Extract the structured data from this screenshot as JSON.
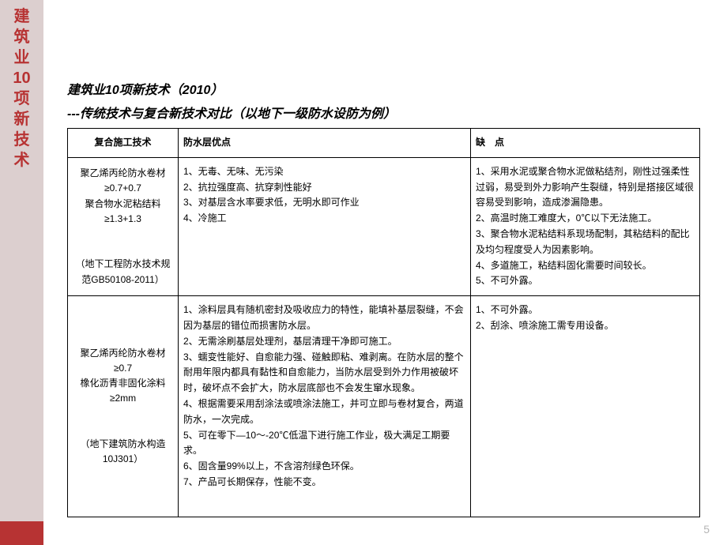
{
  "sidebar": {
    "chars": [
      "建",
      "筑",
      "业",
      "10",
      "项",
      "新",
      "技",
      "术"
    ]
  },
  "header": {
    "title_main": "建筑业10项新技术（2010）",
    "title_sub": "---传统技术与复合新技术对比（以地下一级防水设防为例）"
  },
  "table": {
    "headers": {
      "col1": "复合施工技术",
      "col2": "防水层优点",
      "col3": "缺　点"
    },
    "rows": [
      {
        "tech": "聚乙烯丙纶防水卷材\n≥0.7+0.7\n聚合物水泥粘结料\n≥1.3+1.3\n\n（地下工程防水技术规范GB50108-2011）",
        "advantages": "1、无毒、无味、无污染\n2、抗拉强度高、抗穿刺性能好\n3、对基层含水率要求低，无明水即可作业\n4、冷施工",
        "disadvantages": "1、采用水泥或聚合物水泥做粘结剂，刚性过强柔性过弱，易受到外力影响产生裂缝，特别是搭接区域很容易受到影响，造成渗漏隐患。\n2、高温时施工难度大，0℃以下无法施工。\n3、聚合物水泥粘结料系现场配制，其粘结料的配比及均匀程度受人为因素影响。\n4、多道施工，粘结料固化需要时间较长。\n5、不可外露。"
      },
      {
        "tech": "聚乙烯丙纶防水卷材\n≥0.7\n橡化沥青非固化涂料\n≥2mm\n\n（地下建筑防水构造10J301）",
        "advantages": "1、涂料层具有随机密封及吸收应力的特性，能填补基层裂缝，不会因为基层的错位而损害防水层。\n2、无需涂刷基层处理剂，基层清理干净即可施工。\n3、蠕变性能好、自愈能力强、碰触即粘、难剥离。在防水层的整个耐用年限内都具有黏性和自愈能力，当防水层受到外力作用被破坏时，破坏点不会扩大，防水层底部也不会发生窜水现象。\n4、根据需要采用刮涂法或喷涂法施工，并可立即与卷材复合，两道防水，一次完成。\n5、可在零下—10～-20℃低温下进行施工作业，极大满足工期要求。\n6、固含量99%以上，不含溶剂绿色环保。\n7、产品可长期保存，性能不变。",
        "disadvantages": "1、不可外露。\n2、刮涂、喷涂施工需专用设备。"
      }
    ]
  },
  "page_number": "5",
  "colors": {
    "sidebar_bg": "#dccfcf",
    "sidebar_text": "#b73333",
    "bottom_bar": "#b73333",
    "page_num": "#b5b5b5",
    "border": "#000000"
  }
}
